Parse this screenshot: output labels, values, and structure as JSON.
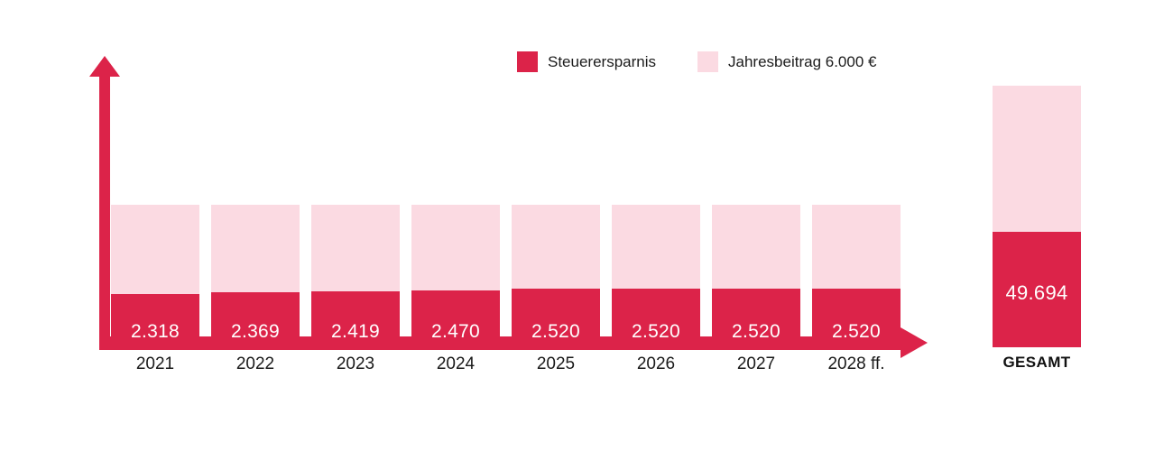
{
  "colors": {
    "accent_red": "#DC2349",
    "light_pink": "#FBDAE2",
    "value_text": "#FFFFFF",
    "axis_label_text": "#1A1A1A"
  },
  "legend": {
    "items": [
      {
        "label": "Steuerersparnis",
        "color": "#DC2349"
      },
      {
        "label": "Jahresbeitrag 6.000 €",
        "color": "#FBDAE2"
      }
    ]
  },
  "chart_data": {
    "type": "bar",
    "stacked": true,
    "title": "",
    "xlabel": "",
    "ylabel": "",
    "grid": false,
    "legend_position": "top",
    "axis_style": "red arrows, no ticks, no numeric scale",
    "categories": [
      "2021",
      "2022",
      "2023",
      "2024",
      "2025",
      "2026",
      "2027",
      "2028 ff."
    ],
    "bar_total_value": 6000,
    "series": [
      {
        "name": "Steuerersparnis",
        "color": "#DC2349",
        "values": [
          2318,
          2369,
          2419,
          2470,
          2520,
          2520,
          2520,
          2520
        ],
        "labels": [
          "2.318",
          "2.369",
          "2.419",
          "2.470",
          "2.520",
          "2.520",
          "2.520",
          "2.520"
        ]
      },
      {
        "name": "Jahresbeitrag 6.000 €",
        "color": "#FBDAE2",
        "annual_total_value": 6000,
        "annual_total_label": "6.000 €"
      }
    ],
    "gesamt": {
      "label": "GESAMT",
      "value": 49694,
      "value_label": "49.694"
    }
  }
}
